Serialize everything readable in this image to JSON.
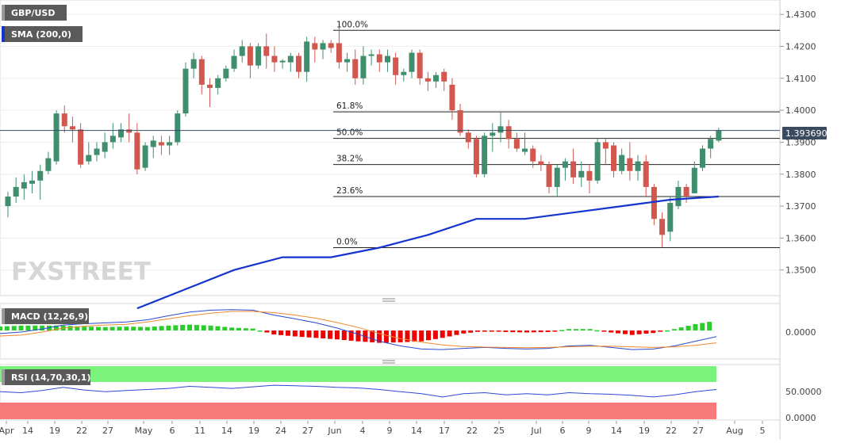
{
  "chart_data": [
    {
      "type": "candlestick",
      "title": "GBP/USD",
      "indicator_label": "SMA (200,0)",
      "watermark": "FXSTREET",
      "last_price": "1.393690",
      "ylim": [
        1.342,
        1.4345
      ],
      "y_ticks": [
        "1.4300",
        "1.4200",
        "1.4100",
        "1.4000",
        "1.3900",
        "1.3800",
        "1.3700",
        "1.3600",
        "1.3500"
      ],
      "y_tick_values": [
        1.43,
        1.42,
        1.41,
        1.4,
        1.39,
        1.38,
        1.37,
        1.36,
        1.35
      ],
      "fib_levels": [
        {
          "label": "100.0%",
          "value": 1.425
        },
        {
          "label": "61.8%",
          "value": 1.3995
        },
        {
          "label": "50.0%",
          "value": 1.3912
        },
        {
          "label": "38.2%",
          "value": 1.383
        },
        {
          "label": "23.6%",
          "value": 1.373
        },
        {
          "label": "0.0%",
          "value": 1.357
        }
      ],
      "candles": [
        [
          1.37,
          1.373,
          1.3665,
          1.3745
        ],
        [
          1.373,
          1.376,
          1.371,
          1.379
        ],
        [
          1.3755,
          1.3775,
          1.372,
          1.38
        ],
        [
          1.377,
          1.378,
          1.374,
          1.381
        ],
        [
          1.378,
          1.381,
          1.372,
          1.383
        ],
        [
          1.381,
          1.385,
          1.38,
          1.387
        ],
        [
          1.384,
          1.399,
          1.383,
          1.4
        ],
        [
          1.399,
          1.395,
          1.393,
          1.4015
        ],
        [
          1.395,
          1.394,
          1.39,
          1.398
        ],
        [
          1.394,
          1.383,
          1.382,
          1.396
        ],
        [
          1.384,
          1.386,
          1.383,
          1.39
        ],
        [
          1.386,
          1.388,
          1.384,
          1.39
        ],
        [
          1.387,
          1.39,
          1.385,
          1.393
        ],
        [
          1.39,
          1.392,
          1.388,
          1.396
        ],
        [
          1.3915,
          1.394,
          1.39,
          1.396
        ],
        [
          1.394,
          1.393,
          1.39,
          1.399
        ],
        [
          1.393,
          1.3815,
          1.38,
          1.396
        ],
        [
          1.382,
          1.389,
          1.381,
          1.39
        ],
        [
          1.3885,
          1.3905,
          1.385,
          1.392
        ],
        [
          1.39,
          1.389,
          1.386,
          1.392
        ],
        [
          1.389,
          1.39,
          1.386,
          1.392
        ],
        [
          1.39,
          1.399,
          1.389,
          1.4
        ],
        [
          1.399,
          1.413,
          1.398,
          1.415
        ],
        [
          1.413,
          1.416,
          1.41,
          1.418
        ],
        [
          1.416,
          1.408,
          1.405,
          1.417
        ],
        [
          1.408,
          1.407,
          1.401,
          1.41
        ],
        [
          1.407,
          1.41,
          1.405,
          1.411
        ],
        [
          1.41,
          1.413,
          1.409,
          1.414
        ],
        [
          1.413,
          1.417,
          1.412,
          1.419
        ],
        [
          1.417,
          1.42,
          1.415,
          1.422
        ],
        [
          1.42,
          1.414,
          1.41,
          1.421
        ],
        [
          1.414,
          1.42,
          1.413,
          1.421
        ],
        [
          1.42,
          1.417,
          1.413,
          1.424
        ],
        [
          1.417,
          1.415,
          1.412,
          1.42
        ],
        [
          1.415,
          1.4155,
          1.413,
          1.416
        ],
        [
          1.415,
          1.417,
          1.412,
          1.418
        ],
        [
          1.417,
          1.412,
          1.41,
          1.418
        ],
        [
          1.412,
          1.4215,
          1.409,
          1.423
        ],
        [
          1.421,
          1.419,
          1.415,
          1.423
        ],
        [
          1.419,
          1.421,
          1.416,
          1.422
        ],
        [
          1.421,
          1.4195,
          1.418,
          1.422
        ],
        [
          1.421,
          1.415,
          1.413,
          1.426
        ],
        [
          1.415,
          1.416,
          1.412,
          1.418
        ],
        [
          1.416,
          1.41,
          1.408,
          1.419
        ],
        [
          1.41,
          1.417,
          1.408,
          1.42
        ],
        [
          1.417,
          1.4175,
          1.414,
          1.419
        ],
        [
          1.4175,
          1.415,
          1.412,
          1.419
        ],
        [
          1.415,
          1.417,
          1.412,
          1.419
        ],
        [
          1.4165,
          1.411,
          1.408,
          1.418
        ],
        [
          1.411,
          1.412,
          1.409,
          1.413
        ],
        [
          1.412,
          1.418,
          1.41,
          1.419
        ],
        [
          1.418,
          1.41,
          1.408,
          1.419
        ],
        [
          1.41,
          1.409,
          1.406,
          1.412
        ],
        [
          1.409,
          1.411,
          1.407,
          1.412
        ],
        [
          1.412,
          1.409,
          1.406,
          1.413
        ],
        [
          1.408,
          1.4,
          1.397,
          1.41
        ],
        [
          1.4,
          1.393,
          1.392,
          1.402
        ],
        [
          1.393,
          1.39,
          1.388,
          1.394
        ],
        [
          1.391,
          1.38,
          1.379,
          1.392
        ],
        [
          1.38,
          1.392,
          1.379,
          1.393
        ],
        [
          1.392,
          1.393,
          1.387,
          1.396
        ],
        [
          1.393,
          1.395,
          1.39,
          1.3995
        ],
        [
          1.395,
          1.391,
          1.388,
          1.397
        ],
        [
          1.391,
          1.388,
          1.387,
          1.393
        ],
        [
          1.387,
          1.388,
          1.386,
          1.393
        ],
        [
          1.388,
          1.384,
          1.382,
          1.389
        ],
        [
          1.384,
          1.383,
          1.381,
          1.386
        ],
        [
          1.383,
          1.376,
          1.374,
          1.384
        ],
        [
          1.376,
          1.382,
          1.373,
          1.383
        ],
        [
          1.382,
          1.384,
          1.378,
          1.385
        ],
        [
          1.384,
          1.379,
          1.377,
          1.388
        ],
        [
          1.379,
          1.381,
          1.376,
          1.384
        ],
        [
          1.381,
          1.378,
          1.374,
          1.383
        ],
        [
          1.378,
          1.39,
          1.377,
          1.391
        ],
        [
          1.39,
          1.388,
          1.383,
          1.391
        ],
        [
          1.389,
          1.381,
          1.379,
          1.39
        ],
        [
          1.381,
          1.386,
          1.38,
          1.388
        ],
        [
          1.385,
          1.381,
          1.378,
          1.39
        ],
        [
          1.381,
          1.384,
          1.378,
          1.386
        ],
        [
          1.384,
          1.376,
          1.373,
          1.386
        ],
        [
          1.376,
          1.366,
          1.364,
          1.377
        ],
        [
          1.366,
          1.361,
          1.357,
          1.368
        ],
        [
          1.362,
          1.371,
          1.359,
          1.373
        ],
        [
          1.37,
          1.376,
          1.369,
          1.378
        ],
        [
          1.376,
          1.373,
          1.371,
          1.377
        ],
        [
          1.374,
          1.382,
          1.374,
          1.384
        ],
        [
          1.382,
          1.388,
          1.381,
          1.389
        ],
        [
          1.388,
          1.391,
          1.385,
          1.392
        ],
        [
          1.3905,
          1.3937,
          1.39,
          1.3945
        ]
      ],
      "sma_200": [
        [
          1.338,
          1.344,
          1.35,
          1.354
        ],
        [
          1.354,
          1.357,
          1.361,
          1.366
        ],
        [
          1.366,
          1.368,
          1.37,
          1.372,
          1.373
        ]
      ]
    },
    {
      "type": "line",
      "title": "MACD (12,26,9)",
      "y_ticks": [
        "0.0000"
      ],
      "ylim": [
        -0.009,
        0.008
      ],
      "zero": 0,
      "macd": [
        -0.001,
        -0.0005,
        0.0005,
        0.0018,
        0.0022,
        0.0025,
        0.0028,
        0.0035,
        0.0048,
        0.006,
        0.0066,
        0.0068,
        0.0066,
        0.005,
        0.0038,
        0.0025,
        0.0008,
        -0.0012,
        -0.0035,
        -0.005,
        -0.006,
        -0.0062,
        -0.0058,
        -0.0055,
        -0.0058,
        -0.006,
        -0.0058,
        -0.005,
        -0.0048,
        -0.0055,
        -0.0062,
        -0.006,
        -0.005,
        -0.0035,
        -0.002
      ],
      "signal": [
        -0.0018,
        -0.0015,
        -0.0005,
        0.0008,
        0.0014,
        0.0018,
        0.002,
        0.0028,
        0.0038,
        0.0048,
        0.0056,
        0.0062,
        0.0062,
        0.0058,
        0.005,
        0.004,
        0.0026,
        0.001,
        -0.001,
        -0.0026,
        -0.0038,
        -0.0047,
        -0.0052,
        -0.0054,
        -0.0055,
        -0.0056,
        -0.0055,
        -0.0053,
        -0.0051,
        -0.0051,
        -0.0053,
        -0.0055,
        -0.0053,
        -0.0048,
        -0.004
      ]
    },
    {
      "type": "line",
      "title": "RSI (14,70,30,1)",
      "y_ticks": [
        "50.0000",
        "0.0000"
      ],
      "ylim": [
        0,
        100
      ],
      "overbought": 70,
      "oversold": 30,
      "rsi": [
        52,
        50,
        54,
        60,
        55,
        52,
        54,
        56,
        58,
        62,
        60,
        58,
        61,
        64,
        63,
        62,
        60,
        59,
        56,
        52,
        48,
        42,
        48,
        50,
        46,
        48,
        46,
        50,
        48,
        47,
        45,
        42,
        46,
        52,
        56
      ]
    }
  ],
  "x_axis": {
    "labels": [
      "Apr",
      "14",
      "19",
      "22",
      "27",
      "May",
      "6",
      "11",
      "14",
      "19",
      "24",
      "27",
      "Jun",
      "4",
      "9",
      "14",
      "17",
      "22",
      "25",
      "Jul",
      "6",
      "9",
      "14",
      "19",
      "22",
      "27",
      "Aug",
      "5"
    ]
  },
  "colors": {
    "bull": "#3f8f6e",
    "bear": "#d2574f",
    "sma": "#1534cf",
    "macd_line": "#2c48d0",
    "signal_line": "#f08a2b",
    "hist_pos": "#2ccc2c",
    "hist_neg": "#ee0000",
    "rsi_line": "#2f48d2",
    "rsi_ob": "#7bf27b",
    "rsi_os": "#f77a7a"
  }
}
